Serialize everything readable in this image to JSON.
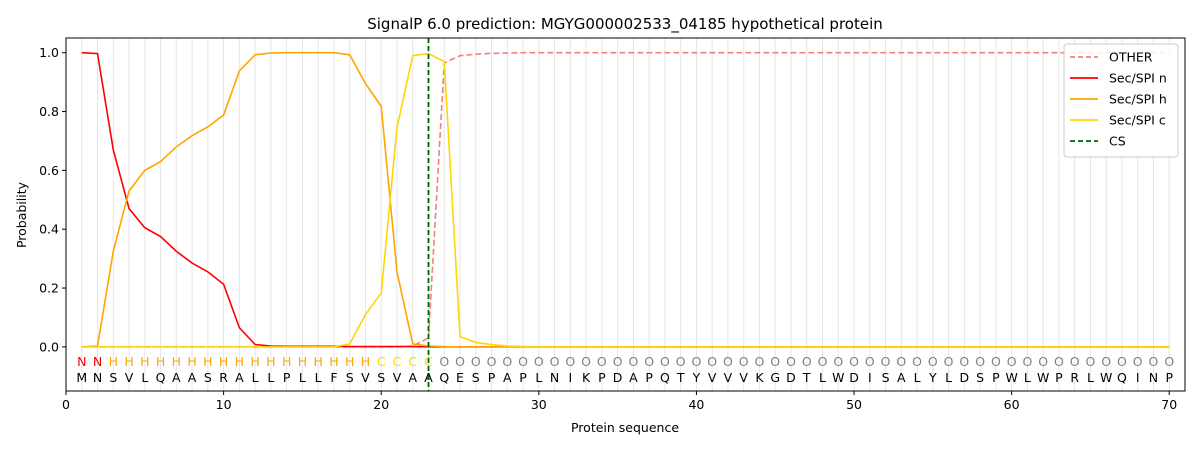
{
  "chart_data": {
    "type": "line",
    "title": "SignalP 6.0 prediction: MGYG000002533_04185 hypothetical protein",
    "xlabel": "Protein sequence",
    "ylabel": "Probability",
    "xlim": [
      0,
      71
    ],
    "ylim": [
      -0.15,
      1.05
    ],
    "x_ticks": [
      0,
      10,
      20,
      30,
      40,
      50,
      60,
      70
    ],
    "y_ticks": [
      0.0,
      0.2,
      0.4,
      0.6,
      0.8,
      1.0
    ],
    "y_tick_labels": [
      "0.0",
      "0.2",
      "0.4",
      "0.6",
      "0.8",
      "1.0"
    ],
    "grid": "vertical lines at each residue",
    "legend_position": "top-right",
    "sequence": [
      "M",
      "N",
      "S",
      "V",
      "L",
      "Q",
      "A",
      "A",
      "S",
      "R",
      "A",
      "L",
      "L",
      "P",
      "L",
      "L",
      "F",
      "S",
      "V",
      "S",
      "V",
      "A",
      "A",
      "Q",
      "E",
      "S",
      "P",
      "A",
      "P",
      "L",
      "N",
      "I",
      "K",
      "P",
      "D",
      "A",
      "P",
      "Q",
      "T",
      "Y",
      "V",
      "V",
      "V",
      "K",
      "G",
      "D",
      "T",
      "L",
      "W",
      "D",
      "I",
      "S",
      "A",
      "L",
      "Y",
      "L",
      "D",
      "S",
      "P",
      "W",
      "L",
      "W",
      "P",
      "R",
      "L",
      "W",
      "Q",
      "I",
      "N",
      "P"
    ],
    "region_labels": [
      "N",
      "N",
      "H",
      "H",
      "H",
      "H",
      "H",
      "H",
      "H",
      "H",
      "H",
      "H",
      "H",
      "H",
      "H",
      "H",
      "H",
      "H",
      "H",
      "C",
      "C",
      "C",
      "C",
      "O",
      "O",
      "O",
      "O",
      "O",
      "O",
      "O",
      "O",
      "O",
      "O",
      "O",
      "O",
      "O",
      "O",
      "O",
      "O",
      "O",
      "O",
      "O",
      "O",
      "O",
      "O",
      "O",
      "O",
      "O",
      "O",
      "O",
      "O",
      "O",
      "O",
      "O",
      "O",
      "O",
      "O",
      "O",
      "O",
      "O",
      "O",
      "O",
      "O",
      "O",
      "O",
      "O",
      "O",
      "O",
      "O",
      "O"
    ],
    "region_colors": {
      "N": "#ff0000",
      "H": "#ffa500",
      "C": "#ffd700",
      "O": "#808080"
    },
    "cs_position": 23,
    "series": [
      {
        "name": "OTHER",
        "color": "#f08080",
        "dash": true,
        "values": [
          0,
          0,
          0,
          0,
          0,
          0,
          0,
          0,
          0,
          0,
          0,
          0,
          0,
          0,
          0,
          0,
          0,
          0,
          0,
          0,
          0,
          0.003,
          0.03,
          0.965,
          0.99,
          0.995,
          0.998,
          0.999,
          1,
          1,
          1,
          1,
          1,
          1,
          1,
          1,
          1,
          1,
          1,
          1,
          1,
          1,
          1,
          1,
          1,
          1,
          1,
          1,
          1,
          1,
          1,
          1,
          1,
          1,
          1,
          1,
          1,
          1,
          1,
          1,
          1,
          1,
          1,
          1,
          1,
          1,
          1,
          1,
          1,
          1
        ]
      },
      {
        "name": "Sec/SPI n",
        "color": "#ff0000",
        "dash": false,
        "values": [
          1.0,
          0.997,
          0.67,
          0.47,
          0.405,
          0.375,
          0.325,
          0.285,
          0.255,
          0.213,
          0.065,
          0.008,
          0.003,
          0.002,
          0.002,
          0.002,
          0.002,
          0.001,
          0.001,
          0.001,
          0.001,
          0.001,
          0,
          0,
          0,
          0,
          0,
          0,
          0,
          0,
          0,
          0,
          0,
          0,
          0,
          0,
          0,
          0,
          0,
          0,
          0,
          0,
          0,
          0,
          0,
          0,
          0,
          0,
          0,
          0,
          0,
          0,
          0,
          0,
          0,
          0,
          0,
          0,
          0,
          0,
          0,
          0,
          0,
          0,
          0,
          0,
          0,
          0,
          0,
          0
        ]
      },
      {
        "name": "Sec/SPI h",
        "color": "#ffa500",
        "dash": false,
        "values": [
          0,
          0.003,
          0.325,
          0.53,
          0.6,
          0.63,
          0.68,
          0.718,
          0.748,
          0.788,
          0.938,
          0.993,
          0.999,
          1.0,
          1.0,
          1.0,
          1.0,
          0.993,
          0.895,
          0.818,
          0.255,
          0.01,
          0.003,
          0.001,
          0,
          0,
          0,
          0,
          0,
          0,
          0,
          0,
          0,
          0,
          0,
          0,
          0,
          0,
          0,
          0,
          0,
          0,
          0,
          0,
          0,
          0,
          0,
          0,
          0,
          0,
          0,
          0,
          0,
          0,
          0,
          0,
          0,
          0,
          0,
          0,
          0,
          0,
          0,
          0,
          0,
          0,
          0,
          0,
          0,
          0
        ]
      },
      {
        "name": "Sec/SPI c",
        "color": "#ffd700",
        "dash": false,
        "values": [
          0,
          0,
          0,
          0,
          0,
          0,
          0,
          0,
          0,
          0,
          0,
          0,
          0,
          0,
          0,
          0,
          0,
          0.01,
          0.11,
          0.183,
          0.745,
          0.99,
          0.997,
          0.97,
          0.035,
          0.015,
          0.008,
          0.003,
          0.001,
          0,
          0,
          0,
          0,
          0,
          0,
          0,
          0,
          0,
          0,
          0,
          0,
          0,
          0,
          0,
          0,
          0,
          0,
          0,
          0,
          0,
          0,
          0,
          0,
          0,
          0,
          0,
          0,
          0,
          0,
          0,
          0,
          0,
          0,
          0,
          0,
          0,
          0,
          0,
          0,
          0
        ]
      },
      {
        "name": "CS",
        "color": "#006400",
        "dash": true,
        "vertical_at": 23
      }
    ]
  }
}
